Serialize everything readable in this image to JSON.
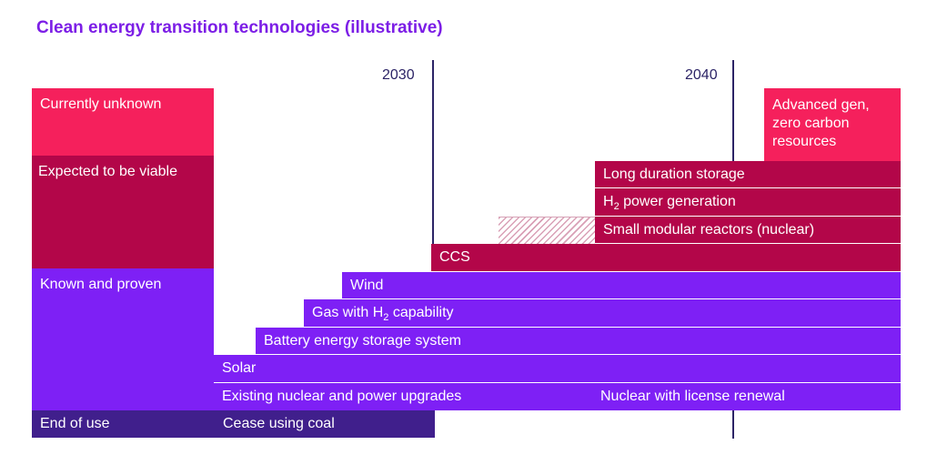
{
  "title": "Clean energy transition technologies (illustrative)",
  "years": [
    "2030",
    "2040"
  ],
  "categories": {
    "currently_unknown": "Currently unknown",
    "expected_viable": "Expected to be viable",
    "known_proven": "Known and proven",
    "end_of_use": "End of use"
  },
  "technologies": {
    "advanced_gen": [
      "Advanced gen,",
      "zero carbon",
      "resources"
    ],
    "long_duration_storage": "Long duration storage",
    "h2_power_pre": "H",
    "h2_sub": "2",
    "h2_power_post": " power generation",
    "smr": "Small modular reactors (nuclear)",
    "ccs": "CCS",
    "wind": "Wind",
    "gas_pre": "Gas with H",
    "gas_sub": "2",
    "gas_post": " capability",
    "battery": "Battery energy storage system",
    "solar": "Solar",
    "existing_nuclear": "Existing nuclear and power upgrades",
    "nuclear_license": "Nuclear with license renewal",
    "cease_coal": "Cease using coal"
  },
  "colors": {
    "title": "#7c1ee6",
    "currently_unknown": "#f5205c",
    "expected_viable": "#b30649",
    "known_proven": "#7e20f5",
    "end_of_use": "#401f8c",
    "year_line": "#2c2466"
  }
}
